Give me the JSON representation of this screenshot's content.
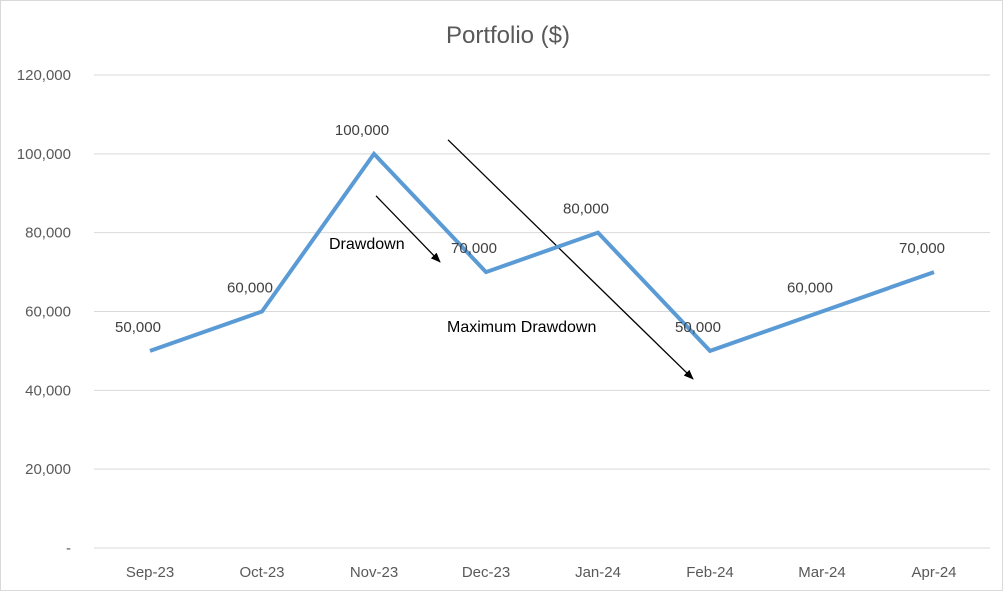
{
  "chart_data": {
    "type": "line",
    "title": "Portfolio ($)",
    "xlabel": "",
    "ylabel": "",
    "categories": [
      "Sep-23",
      "Oct-23",
      "Nov-23",
      "Dec-23",
      "Jan-24",
      "Feb-24",
      "Mar-24",
      "Apr-24"
    ],
    "series": [
      {
        "values": [
          50000,
          60000,
          100000,
          70000,
          80000,
          50000,
          60000,
          70000
        ]
      }
    ],
    "data_labels": [
      "50,000",
      "60,000",
      "100,000",
      "70,000",
      "80,000",
      "50,000",
      "60,000",
      "70,000"
    ],
    "ylim": [
      0,
      120000
    ],
    "y_ticks": [
      0,
      20000,
      40000,
      60000,
      80000,
      100000,
      120000
    ],
    "y_tick_labels": [
      "-",
      "20,000",
      "40,000",
      "60,000",
      "80,000",
      "100,000",
      "120,000"
    ],
    "grid": true,
    "legend": "none",
    "series_color": "#5b9bd5",
    "annotations": [
      {
        "text": "Drawdown",
        "from": [
          "Nov-23",
          100000
        ],
        "to": [
          "Dec-23",
          70000
        ]
      },
      {
        "text": "Maximum Drawdown",
        "from": [
          "Nov-23",
          100000
        ],
        "to": [
          "Feb-24",
          50000
        ]
      }
    ]
  }
}
